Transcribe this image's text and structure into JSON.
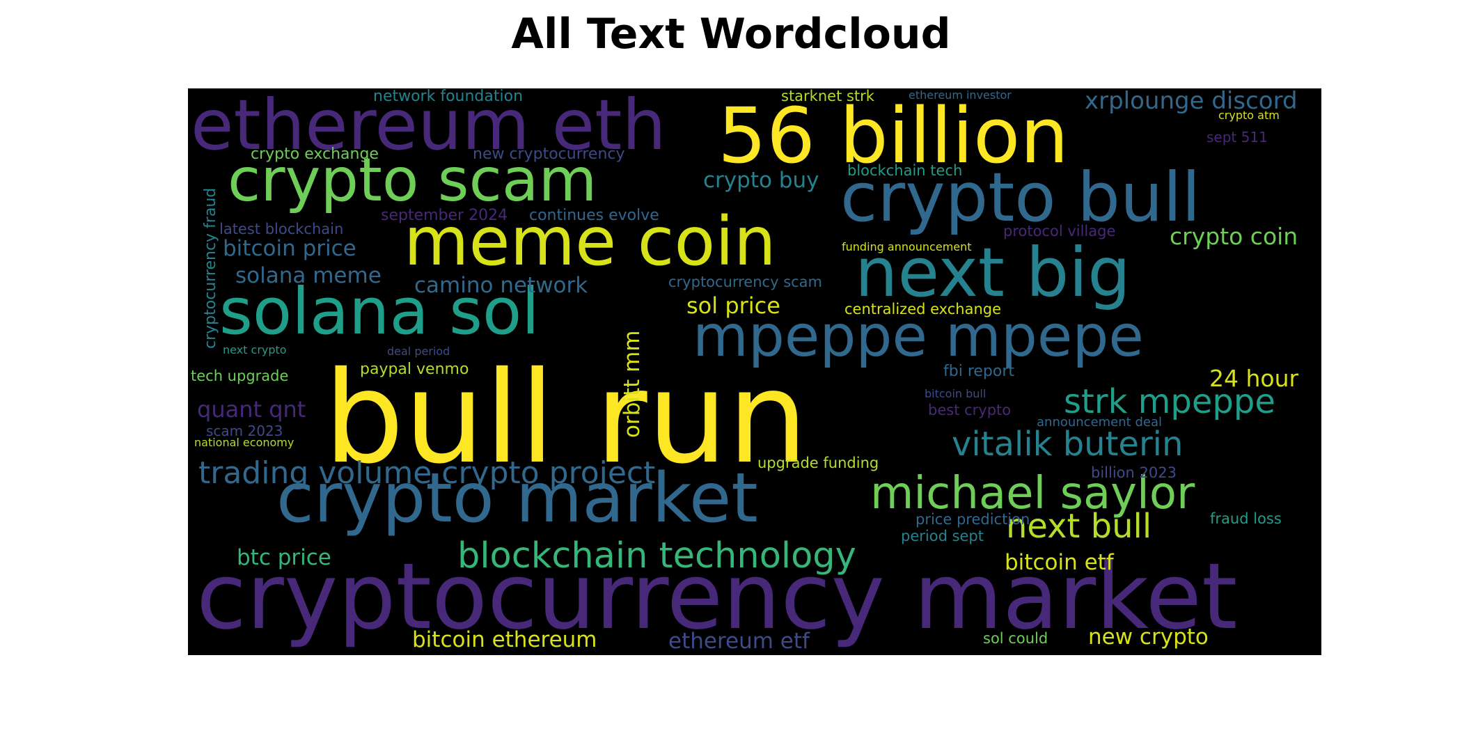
{
  "title": "All Text Wordcloud",
  "palette": {
    "background": "#000000",
    "viridis": [
      "#440154",
      "#482878",
      "#3e4a89",
      "#31688e",
      "#26828e",
      "#1f9e89",
      "#35b779",
      "#6ece58",
      "#b5de2b",
      "#fde725"
    ]
  },
  "words": [
    {
      "text": "bull run",
      "weight": 1.0,
      "color": "#fde725"
    },
    {
      "text": "cryptocurrency market",
      "weight": 0.95,
      "color": "#482878"
    },
    {
      "text": "56 billion",
      "weight": 0.9,
      "color": "#fde725"
    },
    {
      "text": "ethereum eth",
      "weight": 0.88,
      "color": "#482878"
    },
    {
      "text": "crypto market",
      "weight": 0.87,
      "color": "#31688e"
    },
    {
      "text": "crypto bull",
      "weight": 0.85,
      "color": "#31688e"
    },
    {
      "text": "next big",
      "weight": 0.85,
      "color": "#26828e"
    },
    {
      "text": "meme coin",
      "weight": 0.84,
      "color": "#d8e219"
    },
    {
      "text": "solana sol",
      "weight": 0.8,
      "color": "#1f9e89"
    },
    {
      "text": "crypto scam",
      "weight": 0.75,
      "color": "#6ece58"
    },
    {
      "text": "mpeppe mpepe",
      "weight": 0.73,
      "color": "#31688e"
    },
    {
      "text": "michael saylor",
      "weight": 0.55,
      "color": "#6ece58"
    },
    {
      "text": "blockchain technology",
      "weight": 0.45,
      "color": "#35b779"
    },
    {
      "text": "trading volume crypto project",
      "weight": 0.42,
      "color": "#31688e"
    },
    {
      "text": "vitalik buterin",
      "weight": 0.42,
      "color": "#26828e"
    },
    {
      "text": "strk mpeppe",
      "weight": 0.4,
      "color": "#1f9e89"
    },
    {
      "text": "next bull",
      "weight": 0.4,
      "color": "#b5de2b"
    },
    {
      "text": "xrplounge discord",
      "weight": 0.3,
      "color": "#31688e"
    },
    {
      "text": "crypto coin",
      "weight": 0.28,
      "color": "#6ece58"
    },
    {
      "text": "bitcoin price",
      "weight": 0.28,
      "color": "#31688e"
    },
    {
      "text": "solana meme",
      "weight": 0.27,
      "color": "#31688e"
    },
    {
      "text": "camino network",
      "weight": 0.27,
      "color": "#31688e"
    },
    {
      "text": "sol price",
      "weight": 0.27,
      "color": "#d8e219"
    },
    {
      "text": "crypto buy",
      "weight": 0.27,
      "color": "#26828e"
    },
    {
      "text": "24 hour",
      "weight": 0.27,
      "color": "#d8e219"
    },
    {
      "text": "quant qnt",
      "weight": 0.26,
      "color": "#482878"
    },
    {
      "text": "btc price",
      "weight": 0.26,
      "color": "#35b779"
    },
    {
      "text": "bitcoin etf",
      "weight": 0.26,
      "color": "#d8e219"
    },
    {
      "text": "orbitt mm",
      "weight": 0.26,
      "color": "#d8e219"
    },
    {
      "text": "bitcoin ethereum",
      "weight": 0.26,
      "color": "#d8e219"
    },
    {
      "text": "ethereum etf",
      "weight": 0.26,
      "color": "#3e4a89"
    },
    {
      "text": "new crypto",
      "weight": 0.26,
      "color": "#d8e219"
    },
    {
      "text": "cryptocurrency fraud",
      "weight": 0.2,
      "color": "#26828e"
    },
    {
      "text": "network foundation",
      "weight": 0.2,
      "color": "#26828e"
    },
    {
      "text": "new cryptocurrency",
      "weight": 0.2,
      "color": "#3e4a89"
    },
    {
      "text": "crypto exchange",
      "weight": 0.2,
      "color": "#6ece58"
    },
    {
      "text": "september 2024",
      "weight": 0.2,
      "color": "#482878"
    },
    {
      "text": "continues evolve",
      "weight": 0.2,
      "color": "#31688e"
    },
    {
      "text": "latest blockchain",
      "weight": 0.2,
      "color": "#3e4a89"
    },
    {
      "text": "blockchain tech",
      "weight": 0.2,
      "color": "#1f9e89"
    },
    {
      "text": "starknet strk",
      "weight": 0.2,
      "color": "#b5de2b"
    },
    {
      "text": "protocol village",
      "weight": 0.2,
      "color": "#482878"
    },
    {
      "text": "cryptocurrency scam",
      "weight": 0.2,
      "color": "#31688e"
    },
    {
      "text": "centralized exchange",
      "weight": 0.2,
      "color": "#d8e219"
    },
    {
      "text": "fbi report",
      "weight": 0.2,
      "color": "#31688e"
    },
    {
      "text": "paypal venmo",
      "weight": 0.2,
      "color": "#b5de2b"
    },
    {
      "text": "tech upgrade",
      "weight": 0.2,
      "color": "#6ece58"
    },
    {
      "text": "best crypto",
      "weight": 0.2,
      "color": "#482878"
    },
    {
      "text": "upgrade funding",
      "weight": 0.2,
      "color": "#b5de2b"
    },
    {
      "text": "price prediction",
      "weight": 0.2,
      "color": "#31688e"
    },
    {
      "text": "fraud loss",
      "weight": 0.2,
      "color": "#1f9e89"
    },
    {
      "text": "period sept",
      "weight": 0.2,
      "color": "#26828e"
    },
    {
      "text": "sol could",
      "weight": 0.2,
      "color": "#6ece58"
    },
    {
      "text": "billion 2023",
      "weight": 0.2,
      "color": "#3e4a89"
    },
    {
      "text": "sept 511",
      "weight": 0.16,
      "color": "#482878"
    },
    {
      "text": "scam 2023",
      "weight": 0.16,
      "color": "#3e4a89"
    },
    {
      "text": "ethereum investor",
      "weight": 0.12,
      "color": "#31688e"
    },
    {
      "text": "crypto atm",
      "weight": 0.12,
      "color": "#d8e219"
    },
    {
      "text": "funding announcement",
      "weight": 0.12,
      "color": "#d8e219"
    },
    {
      "text": "deal period",
      "weight": 0.12,
      "color": "#3e4a89"
    },
    {
      "text": "next crypto",
      "weight": 0.12,
      "color": "#1f9e89"
    },
    {
      "text": "national economy",
      "weight": 0.12,
      "color": "#b5de2b"
    },
    {
      "text": "bitcoin bull",
      "weight": 0.12,
      "color": "#3e4a89"
    },
    {
      "text": "announcement deal",
      "weight": 0.14,
      "color": "#31688e"
    }
  ]
}
